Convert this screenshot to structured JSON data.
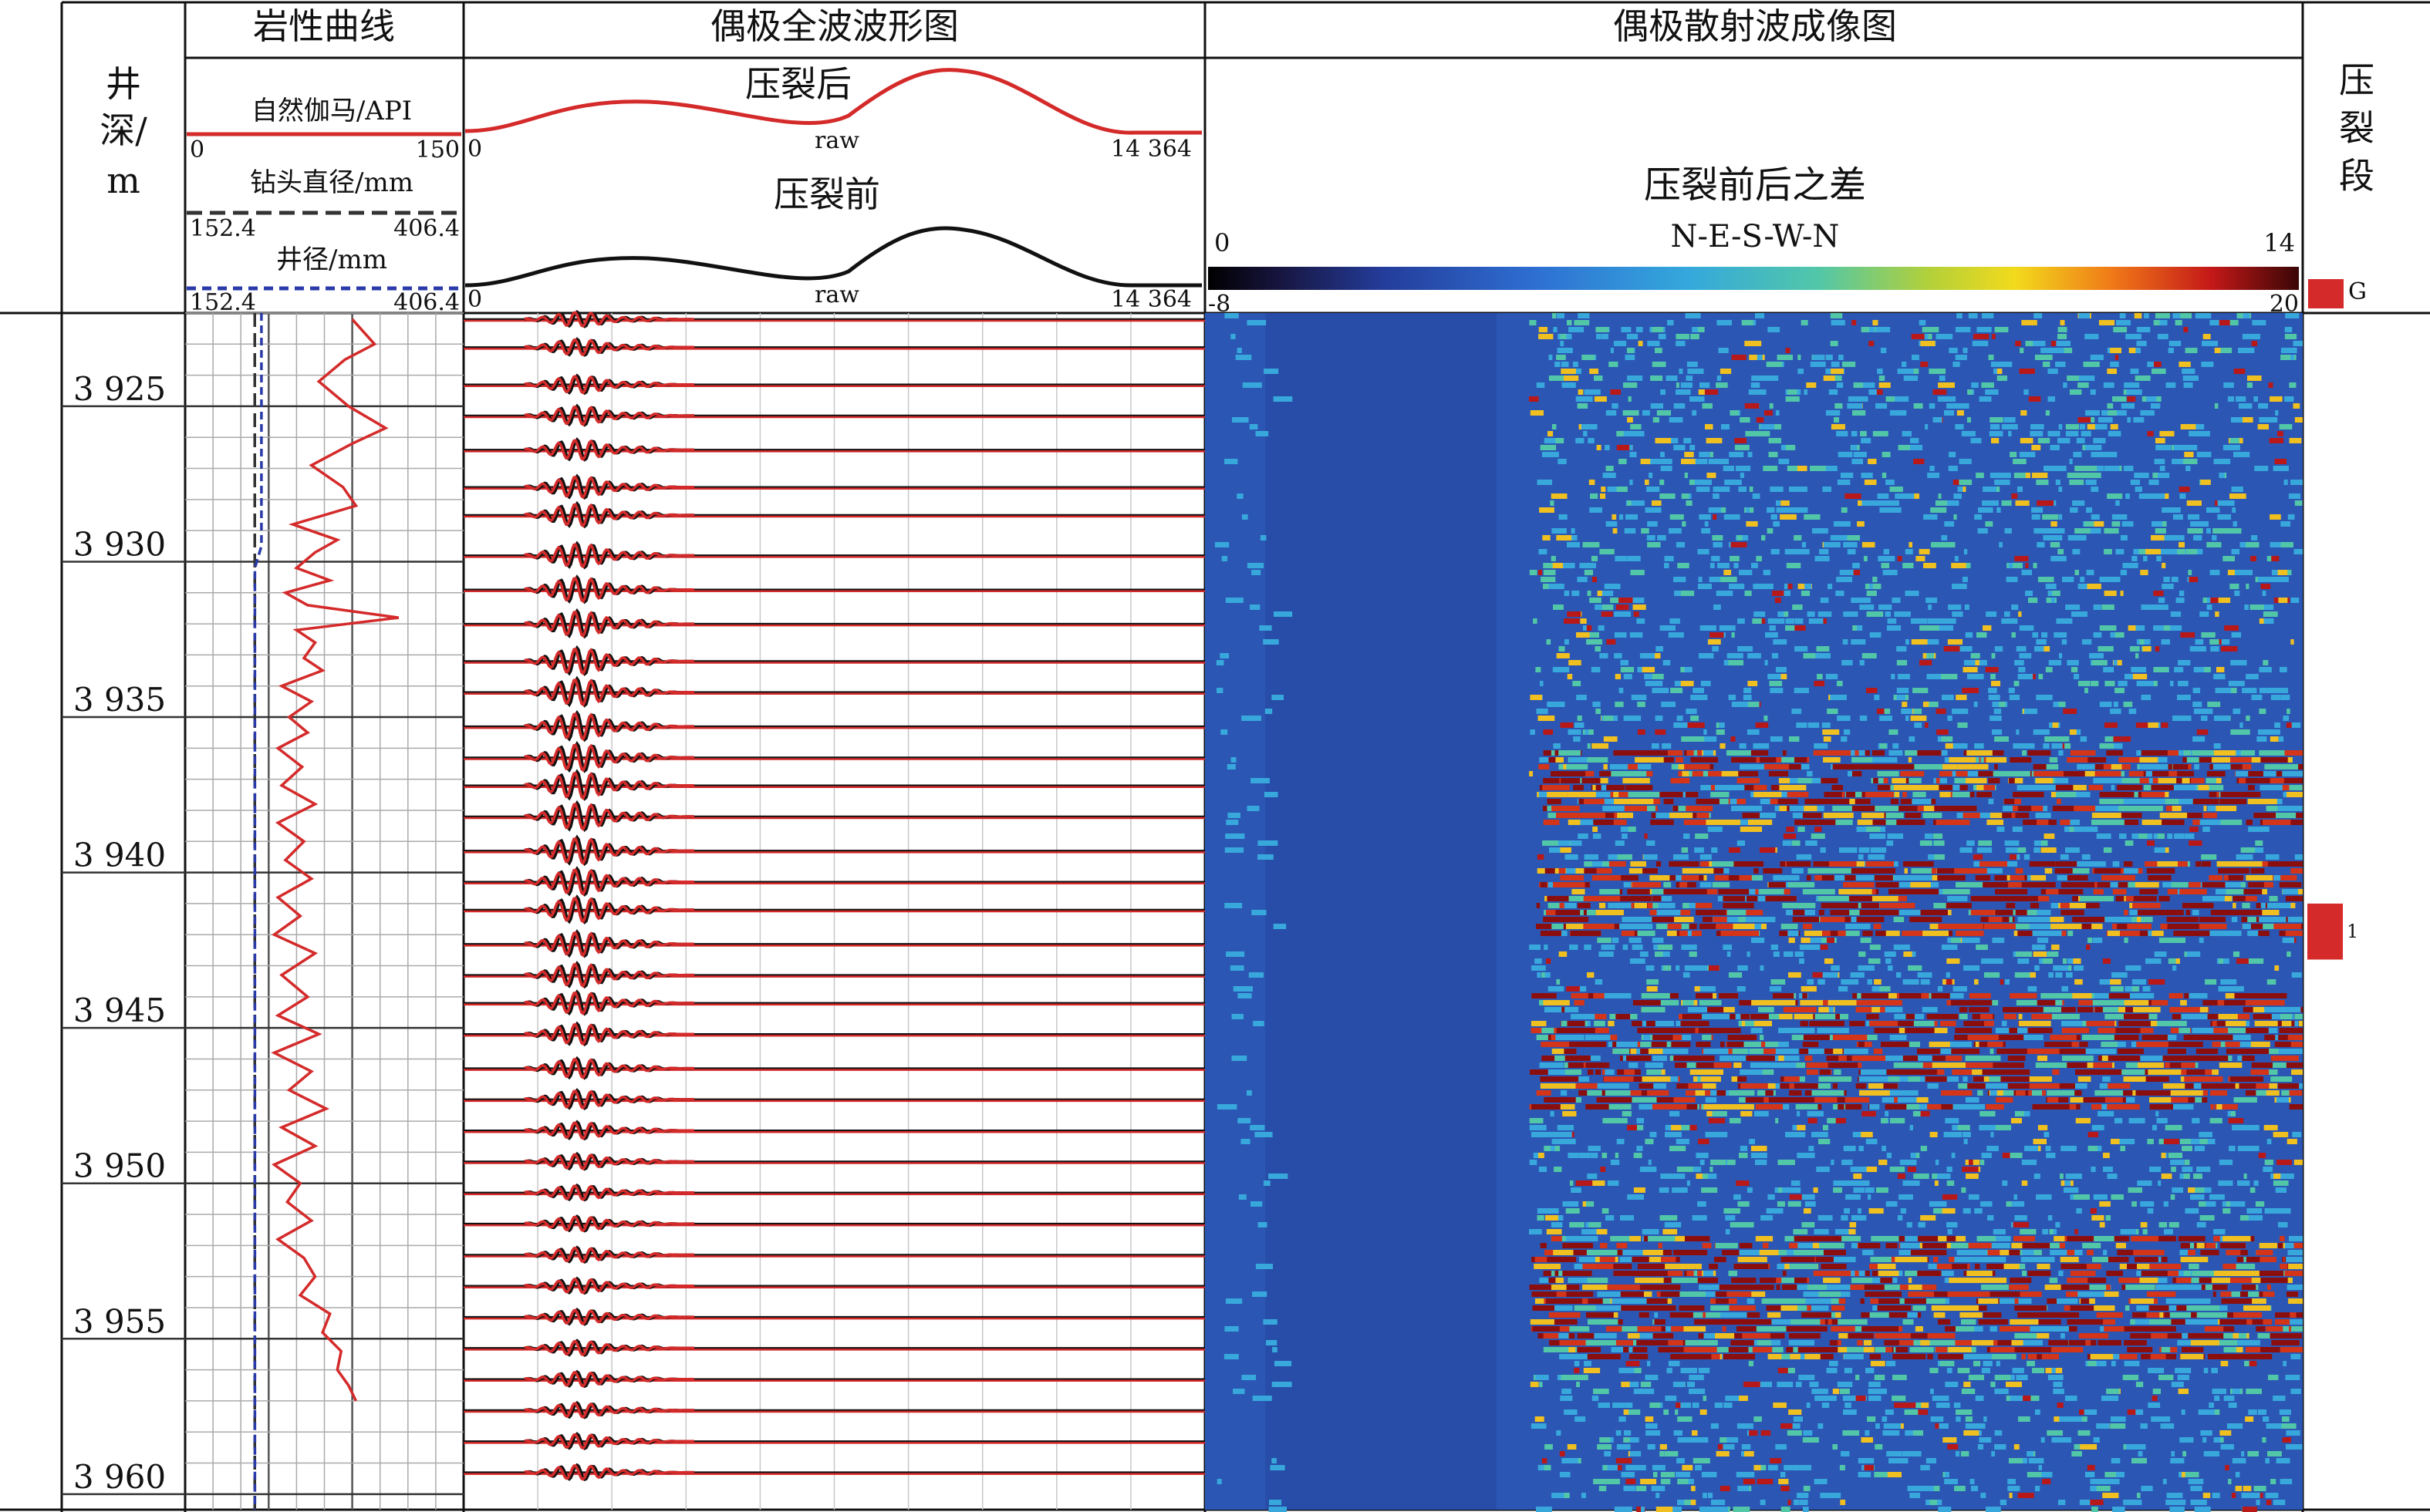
{
  "panels": {
    "lithology": "岩性曲线",
    "waveform": "偶极全波波形图",
    "scatter": "偶极散射波成像图"
  },
  "depth_header": [
    "井",
    "深/",
    "m"
  ],
  "frac_header": [
    "压",
    "裂",
    "段"
  ],
  "curves": {
    "gamma": {
      "label": "自然伽马/API",
      "min": "0",
      "max": "150",
      "color": "#d42a2a"
    },
    "bit": {
      "label": "钻头直径/mm",
      "min": "152.4",
      "max": "406.4",
      "color": "#333333"
    },
    "caliper": {
      "label": "井径/mm",
      "min": "152.4",
      "max": "406.4",
      "color": "#2a3aa8"
    }
  },
  "waveform_header": {
    "after": {
      "title": "压裂后",
      "raw": "raw",
      "min": "0",
      "max": "14 364",
      "color": "#d42a2a"
    },
    "before": {
      "title": "压裂前",
      "raw": "raw",
      "min": "0",
      "max": "14 364",
      "color": "#111111"
    }
  },
  "scatter_header": {
    "title": "压裂前后之差",
    "subtitle": "N-E-S-W-N",
    "az_min": "0",
    "az_max": "14",
    "cb_min": "-8",
    "cb_max": "20"
  },
  "frac_legend": "G",
  "frac_marker": "1",
  "chart_data": {
    "type": "well-log",
    "depth_axis": {
      "ylabel": "井深/m",
      "range": [
        3922.0,
        3960.5
      ],
      "ticks": [
        3925,
        3930,
        3935,
        3940,
        3945,
        3950,
        3955,
        3960
      ],
      "tick_labels": [
        "3 925",
        "3 930",
        "3 935",
        "3 940",
        "3 945",
        "3 950",
        "3 955",
        "3 960"
      ]
    },
    "gamma_api": {
      "depth": [
        3922.2,
        3923.0,
        3923.5,
        3924.2,
        3925.0,
        3925.7,
        3926.2,
        3926.9,
        3927.6,
        3928.2,
        3928.8,
        3929.3,
        3929.7,
        3930.2,
        3930.6,
        3931.0,
        3931.4,
        3931.8,
        3932.2,
        3932.6,
        3933.1,
        3933.5,
        3934.0,
        3934.5,
        3935.0,
        3935.5,
        3936.0,
        3936.6,
        3937.2,
        3937.8,
        3938.4,
        3939.0,
        3939.6,
        3940.2,
        3940.8,
        3941.4,
        3942.0,
        3942.6,
        3943.3,
        3944.0,
        3944.6,
        3945.2,
        3945.8,
        3946.4,
        3947.0,
        3947.6,
        3948.2,
        3948.8,
        3949.4,
        3950.0,
        3950.6,
        3951.2,
        3951.8,
        3952.4,
        3953.0,
        3953.6,
        3954.2,
        3954.8,
        3955.4,
        3956.0,
        3956.5,
        3957.0
      ],
      "values": [
        90,
        102,
        86,
        72,
        88,
        108,
        90,
        68,
        85,
        92,
        58,
        82,
        70,
        60,
        78,
        54,
        66,
        115,
        60,
        70,
        64,
        74,
        52,
        68,
        56,
        66,
        50,
        63,
        52,
        70,
        50,
        64,
        54,
        68,
        50,
        62,
        48,
        70,
        52,
        66,
        50,
        72,
        48,
        68,
        56,
        76,
        52,
        70,
        48,
        62,
        55,
        68,
        50,
        64,
        70,
        62,
        78,
        74,
        84,
        82,
        88,
        92
      ]
    },
    "bit_size_mm": {
      "depth": [
        3922.0,
        3960.5
      ],
      "values": [
        215.9,
        215.9
      ]
    },
    "caliper_mm": {
      "depth": [
        3922.0,
        3929.5,
        3930.2,
        3960.5
      ],
      "values": [
        222,
        222,
        216,
        216
      ]
    },
    "waveforms": {
      "depths": [
        3922.2,
        3923.1,
        3924.3,
        3925.3,
        3926.4,
        3927.6,
        3928.5,
        3929.8,
        3930.9,
        3932.0,
        3933.2,
        3934.2,
        3935.3,
        3936.3,
        3937.2,
        3938.2,
        3939.3,
        3940.3,
        3941.2,
        3942.3,
        3943.3,
        3944.2,
        3945.2,
        3946.3,
        3947.3,
        3948.3,
        3949.3,
        3950.3,
        3951.3,
        3952.3,
        3953.3,
        3954.3,
        3955.3,
        3956.3,
        3957.3,
        3958.3,
        3959.3
      ],
      "series": [
        {
          "name": "压裂后",
          "color": "#d42a2a"
        },
        {
          "name": "压裂前",
          "color": "#111111"
        }
      ],
      "amplitude_range": [
        "0",
        "14 364"
      ]
    },
    "scatter_image": {
      "type": "heatmap",
      "colorbar_range": [
        -8,
        20
      ],
      "azimuth_range": [
        0,
        14
      ],
      "high_difference_depths": [
        [
          3936.0,
          3938.5
        ],
        [
          3939.5,
          3942.0
        ],
        [
          3943.8,
          3947.5
        ],
        [
          3951.5,
          3955.5
        ]
      ]
    },
    "fracture_interval": {
      "depth": [
        3941.0,
        3942.8
      ]
    }
  }
}
